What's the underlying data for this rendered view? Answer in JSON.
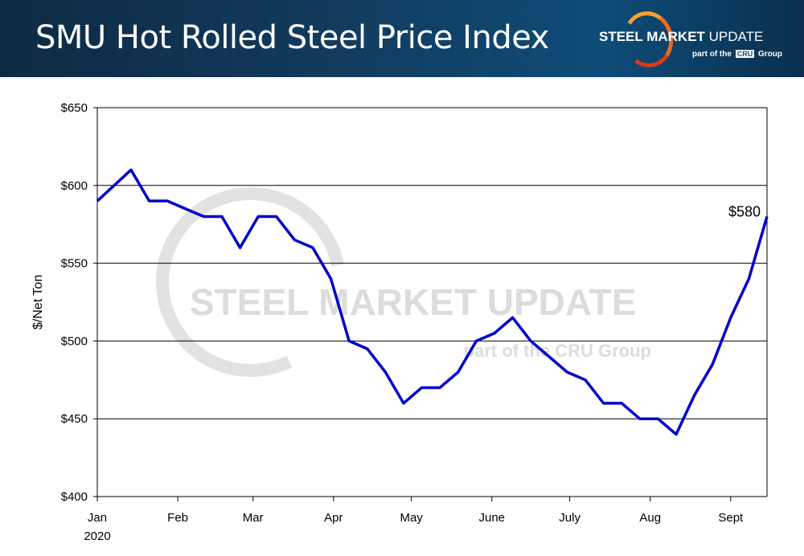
{
  "header": {
    "title": "SMU Hot Rolled Steel Price Index",
    "logo_text": "STEEL MARKET UPDATE",
    "logo_sub": "part of the CRU Group"
  },
  "watermark": {
    "line1": "STEEL MARKET UPDATE",
    "line2": "part of the CRU Group"
  },
  "chart_data": {
    "type": "line",
    "title": "SMU Hot Rolled Steel Price Index",
    "xlabel": "",
    "ylabel": "$/Net Ton",
    "ylim": [
      400,
      650
    ],
    "yticks": [
      "$400",
      "$450",
      "$500",
      "$550",
      "$600",
      "$650"
    ],
    "ytick_values": [
      400,
      450,
      500,
      550,
      600,
      650
    ],
    "xticks": [
      "Jan",
      "Feb",
      "Mar",
      "Apr",
      "May",
      "June",
      "July",
      "Aug",
      "Sept"
    ],
    "xtick_dates": [
      "2020-01-01",
      "2020-02-01",
      "2020-03-01",
      "2020-04-01",
      "2020-05-01",
      "2020-06-01",
      "2020-07-01",
      "2020-08-01",
      "2020-09-01"
    ],
    "year_label": "2020",
    "grid": "horizontal",
    "line_color": "#0000cc",
    "annotation": "$580",
    "x": [
      "2020-01-01",
      "2020-01-14",
      "2020-01-21",
      "2020-01-28",
      "2020-02-04",
      "2020-02-11",
      "2020-02-18",
      "2020-02-25",
      "2020-03-03",
      "2020-03-10",
      "2020-03-17",
      "2020-03-24",
      "2020-03-31",
      "2020-04-07",
      "2020-04-14",
      "2020-04-21",
      "2020-04-28",
      "2020-05-05",
      "2020-05-12",
      "2020-05-19",
      "2020-05-26",
      "2020-06-02",
      "2020-06-09",
      "2020-06-16",
      "2020-06-23",
      "2020-06-30",
      "2020-07-07",
      "2020-07-14",
      "2020-07-21",
      "2020-07-28",
      "2020-08-04",
      "2020-08-11",
      "2020-08-18",
      "2020-08-25",
      "2020-09-01",
      "2020-09-08",
      "2020-09-15"
    ],
    "values": [
      590,
      610,
      590,
      590,
      585,
      580,
      580,
      560,
      580,
      580,
      565,
      560,
      540,
      500,
      495,
      480,
      460,
      470,
      470,
      480,
      500,
      505,
      515,
      500,
      490,
      480,
      475,
      460,
      460,
      450,
      450,
      440,
      465,
      485,
      515,
      540,
      580
    ]
  }
}
